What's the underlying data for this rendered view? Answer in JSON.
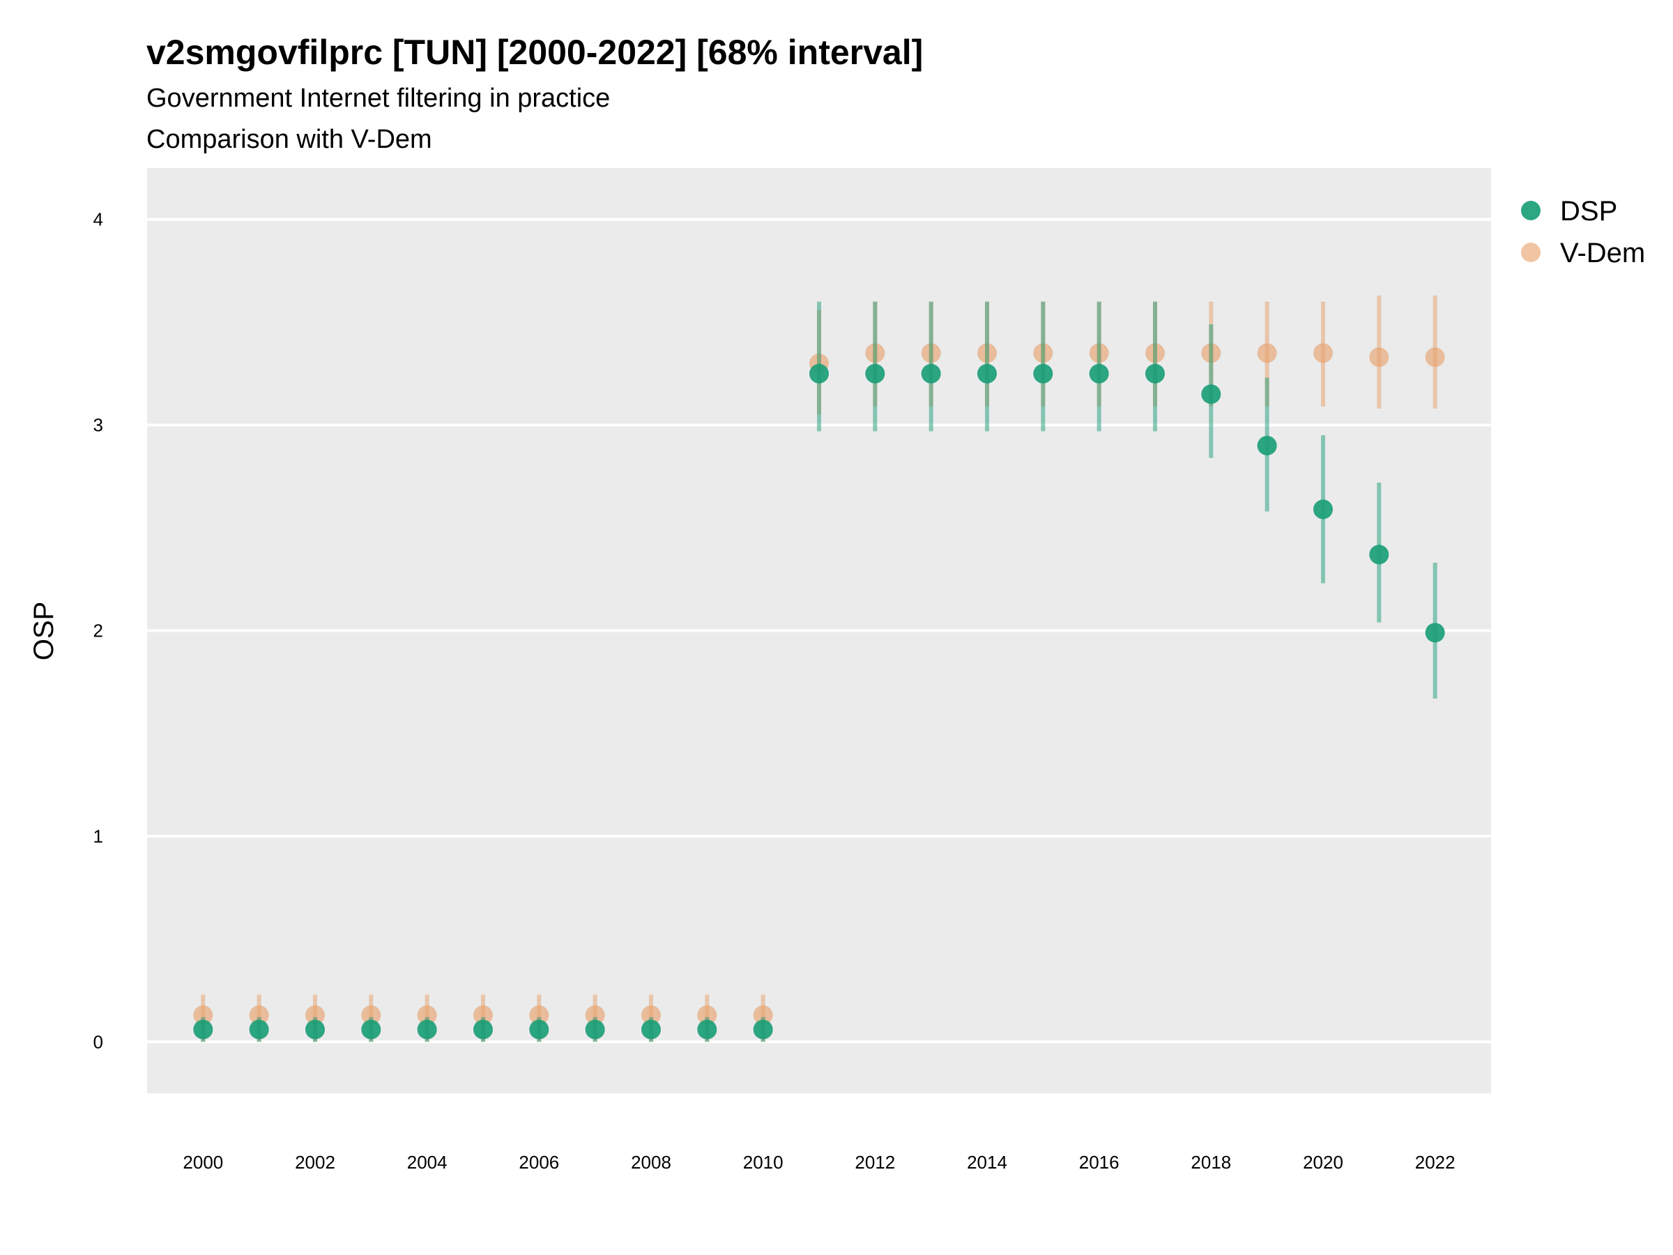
{
  "chart_data": {
    "type": "scatter",
    "title": "v2smgovfilprc [TUN] [2000-2022] [68% interval]",
    "subtitle_lines": [
      "Government Internet filtering in practice",
      "Comparison with V-Dem"
    ],
    "xlabel": "",
    "ylabel": "OSP",
    "xlim": [
      1999,
      2023
    ],
    "ylim": [
      -0.25,
      4.25
    ],
    "y_ticks": [
      0,
      1,
      2,
      3,
      4
    ],
    "x_ticks": [
      2000,
      2002,
      2004,
      2006,
      2008,
      2010,
      2012,
      2014,
      2016,
      2018,
      2020,
      2022
    ],
    "grid": true,
    "legend_position": "right-top",
    "series": [
      {
        "name": "V-Dem",
        "color": "#E8A06A",
        "points": [
          {
            "x": 2000,
            "y": 0.13,
            "low": 0.0,
            "high": 0.23
          },
          {
            "x": 2001,
            "y": 0.13,
            "low": 0.0,
            "high": 0.23
          },
          {
            "x": 2002,
            "y": 0.13,
            "low": 0.0,
            "high": 0.23
          },
          {
            "x": 2003,
            "y": 0.13,
            "low": 0.0,
            "high": 0.23
          },
          {
            "x": 2004,
            "y": 0.13,
            "low": 0.0,
            "high": 0.23
          },
          {
            "x": 2005,
            "y": 0.13,
            "low": 0.0,
            "high": 0.23
          },
          {
            "x": 2006,
            "y": 0.13,
            "low": 0.0,
            "high": 0.23
          },
          {
            "x": 2007,
            "y": 0.13,
            "low": 0.0,
            "high": 0.23
          },
          {
            "x": 2008,
            "y": 0.13,
            "low": 0.0,
            "high": 0.23
          },
          {
            "x": 2009,
            "y": 0.13,
            "low": 0.0,
            "high": 0.23
          },
          {
            "x": 2010,
            "y": 0.13,
            "low": 0.0,
            "high": 0.23
          },
          {
            "x": 2011,
            "y": 3.3,
            "low": 3.05,
            "high": 3.56
          },
          {
            "x": 2012,
            "y": 3.35,
            "low": 3.09,
            "high": 3.6
          },
          {
            "x": 2013,
            "y": 3.35,
            "low": 3.09,
            "high": 3.6
          },
          {
            "x": 2014,
            "y": 3.35,
            "low": 3.09,
            "high": 3.6
          },
          {
            "x": 2015,
            "y": 3.35,
            "low": 3.09,
            "high": 3.6
          },
          {
            "x": 2016,
            "y": 3.35,
            "low": 3.09,
            "high": 3.6
          },
          {
            "x": 2017,
            "y": 3.35,
            "low": 3.09,
            "high": 3.6
          },
          {
            "x": 2018,
            "y": 3.35,
            "low": 3.09,
            "high": 3.6
          },
          {
            "x": 2019,
            "y": 3.35,
            "low": 3.09,
            "high": 3.6
          },
          {
            "x": 2020,
            "y": 3.35,
            "low": 3.09,
            "high": 3.6
          },
          {
            "x": 2021,
            "y": 3.33,
            "low": 3.08,
            "high": 3.63
          },
          {
            "x": 2022,
            "y": 3.33,
            "low": 3.08,
            "high": 3.63
          }
        ]
      },
      {
        "name": "DSP",
        "color": "#1B9E77",
        "points": [
          {
            "x": 2000,
            "y": 0.06,
            "low": 0.0,
            "high": 0.12
          },
          {
            "x": 2001,
            "y": 0.06,
            "low": 0.0,
            "high": 0.12
          },
          {
            "x": 2002,
            "y": 0.06,
            "low": 0.0,
            "high": 0.12
          },
          {
            "x": 2003,
            "y": 0.06,
            "low": 0.0,
            "high": 0.12
          },
          {
            "x": 2004,
            "y": 0.06,
            "low": 0.0,
            "high": 0.12
          },
          {
            "x": 2005,
            "y": 0.06,
            "low": 0.0,
            "high": 0.12
          },
          {
            "x": 2006,
            "y": 0.06,
            "low": 0.0,
            "high": 0.12
          },
          {
            "x": 2007,
            "y": 0.06,
            "low": 0.0,
            "high": 0.12
          },
          {
            "x": 2008,
            "y": 0.06,
            "low": 0.0,
            "high": 0.12
          },
          {
            "x": 2009,
            "y": 0.06,
            "low": 0.0,
            "high": 0.12
          },
          {
            "x": 2010,
            "y": 0.06,
            "low": 0.0,
            "high": 0.12
          },
          {
            "x": 2011,
            "y": 3.25,
            "low": 2.97,
            "high": 3.6
          },
          {
            "x": 2012,
            "y": 3.25,
            "low": 2.97,
            "high": 3.6
          },
          {
            "x": 2013,
            "y": 3.25,
            "low": 2.97,
            "high": 3.6
          },
          {
            "x": 2014,
            "y": 3.25,
            "low": 2.97,
            "high": 3.6
          },
          {
            "x": 2015,
            "y": 3.25,
            "low": 2.97,
            "high": 3.6
          },
          {
            "x": 2016,
            "y": 3.25,
            "low": 2.97,
            "high": 3.6
          },
          {
            "x": 2017,
            "y": 3.25,
            "low": 2.97,
            "high": 3.6
          },
          {
            "x": 2018,
            "y": 3.15,
            "low": 2.84,
            "high": 3.49
          },
          {
            "x": 2019,
            "y": 2.9,
            "low": 2.58,
            "high": 3.23
          },
          {
            "x": 2020,
            "y": 2.59,
            "low": 2.23,
            "high": 2.95
          },
          {
            "x": 2021,
            "y": 2.37,
            "low": 2.04,
            "high": 2.72
          },
          {
            "x": 2022,
            "y": 1.99,
            "low": 1.67,
            "high": 2.33
          }
        ]
      }
    ],
    "legend_order": [
      "DSP",
      "V-Dem"
    ]
  }
}
